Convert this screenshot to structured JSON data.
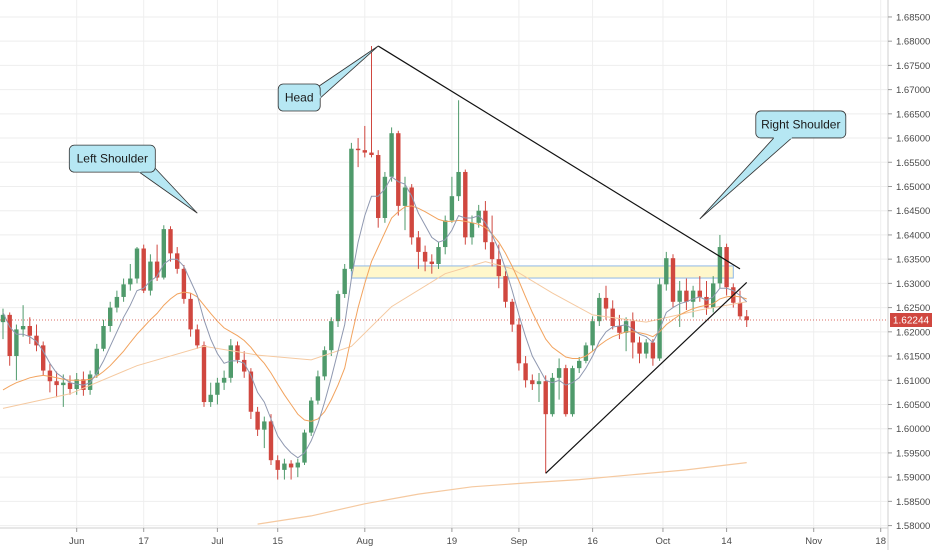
{
  "chart_data": {
    "type": "candlestick",
    "y_ticks": [
      "1.68500",
      "1.68000",
      "1.67500",
      "1.67000",
      "1.66500",
      "1.66000",
      "1.65500",
      "1.65000",
      "1.64500",
      "1.64000",
      "1.63500",
      "1.63000",
      "1.62500",
      "1.62000",
      "1.61500",
      "1.61000",
      "1.60500",
      "1.60000",
      "1.59500",
      "1.59000",
      "1.58500",
      "1.58000"
    ],
    "ylim": [
      1.5795,
      1.6885
    ],
    "x_ticks": [
      "Jun",
      "17",
      "Jul",
      "15",
      "Aug",
      "19",
      "Sep",
      "16",
      "Oct",
      "14",
      "Nov",
      "18"
    ],
    "current_price": "1.62244",
    "current_price_value": 1.62244,
    "colors": {
      "up": "#4f9a6b",
      "down": "#d0473f",
      "ma_fast": "#8f98b0",
      "ma_slow": "#f2a35e",
      "ma_long": "#f5c9a0",
      "grid": "#eeeeee",
      "callout_fill": "#b6e7f3",
      "zone_blue": "#8fb8e6",
      "zone_yellow": "#fff6c2"
    },
    "annotations": [
      {
        "label": "Left Shoulder",
        "anchor_date_index": 29,
        "anchor_price": 1.6445
      },
      {
        "label": "Head",
        "anchor_date_index": 56,
        "anchor_price": 1.679
      },
      {
        "label": "Right Shoulder",
        "anchor_date_index": 104,
        "anchor_price": 1.6433
      }
    ],
    "trendlines": [
      {
        "from": [
          56,
          1.679
        ],
        "to": [
          110,
          1.633
        ]
      },
      {
        "from": [
          81,
          1.5908
        ],
        "to": [
          111,
          1.6302
        ]
      }
    ],
    "zone": {
      "from_index": 52,
      "to_index": 109,
      "top": 1.6336,
      "bottom": 1.6311
    },
    "candles": [
      [
        1.622,
        1.6248,
        1.6185,
        1.6235
      ],
      [
        1.6235,
        1.624,
        1.613,
        1.615
      ],
      [
        1.615,
        1.6215,
        1.61,
        1.6205
      ],
      [
        1.6205,
        1.6255,
        1.619,
        1.6212
      ],
      [
        1.6212,
        1.623,
        1.6175,
        1.6192
      ],
      [
        1.6192,
        1.6215,
        1.616,
        1.6172
      ],
      [
        1.6172,
        1.618,
        1.611,
        1.612
      ],
      [
        1.612,
        1.6135,
        1.6075,
        1.6098
      ],
      [
        1.6098,
        1.6118,
        1.6065,
        1.609
      ],
      [
        1.609,
        1.6112,
        1.6045,
        1.6095
      ],
      [
        1.6095,
        1.611,
        1.607,
        1.6082
      ],
      [
        1.6082,
        1.6115,
        1.607,
        1.6102
      ],
      [
        1.6102,
        1.6118,
        1.6068,
        1.608
      ],
      [
        1.608,
        1.612,
        1.607,
        1.6112
      ],
      [
        1.6112,
        1.6175,
        1.6105,
        1.6165
      ],
      [
        1.6165,
        1.6225,
        1.616,
        1.6212
      ],
      [
        1.6212,
        1.6262,
        1.62,
        1.625
      ],
      [
        1.625,
        1.6285,
        1.624,
        1.6272
      ],
      [
        1.6272,
        1.631,
        1.6262,
        1.6298
      ],
      [
        1.6298,
        1.634,
        1.6285,
        1.631
      ],
      [
        1.631,
        1.6375,
        1.63,
        1.6372
      ],
      [
        1.6372,
        1.638,
        1.628,
        1.6285
      ],
      [
        1.6285,
        1.636,
        1.6275,
        1.6345
      ],
      [
        1.6345,
        1.638,
        1.6305,
        1.6312
      ],
      [
        1.6312,
        1.642,
        1.6308,
        1.6412
      ],
      [
        1.6412,
        1.6418,
        1.6345,
        1.6362
      ],
      [
        1.6362,
        1.6375,
        1.632,
        1.633
      ],
      [
        1.633,
        1.6338,
        1.6258,
        1.6268
      ],
      [
        1.6268,
        1.628,
        1.619,
        1.6205
      ],
      [
        1.6205,
        1.6215,
        1.6165,
        1.6172
      ],
      [
        1.6172,
        1.618,
        1.6045,
        1.6055
      ],
      [
        1.6055,
        1.6095,
        1.6045,
        1.607
      ],
      [
        1.607,
        1.6105,
        1.605,
        1.6095
      ],
      [
        1.6095,
        1.612,
        1.608,
        1.6105
      ],
      [
        1.6105,
        1.6185,
        1.6095,
        1.6172
      ],
      [
        1.6172,
        1.618,
        1.6135,
        1.6142
      ],
      [
        1.6142,
        1.616,
        1.6105,
        1.6118
      ],
      [
        1.6118,
        1.6125,
        1.602,
        1.6035
      ],
      [
        1.6035,
        1.6045,
        1.5985,
        1.5998
      ],
      [
        1.5998,
        1.6025,
        1.596,
        1.6015
      ],
      [
        1.6015,
        1.603,
        1.5925,
        1.5935
      ],
      [
        1.5935,
        1.5945,
        1.5895,
        1.5915
      ],
      [
        1.5915,
        1.5938,
        1.5895,
        1.5928
      ],
      [
        1.5928,
        1.5935,
        1.5895,
        1.592
      ],
      [
        1.592,
        1.5938,
        1.59,
        1.593
      ],
      [
        1.593,
        1.5998,
        1.5925,
        1.5992
      ],
      [
        1.5992,
        1.6065,
        1.5985,
        1.6058
      ],
      [
        1.6058,
        1.612,
        1.605,
        1.6108
      ],
      [
        1.6108,
        1.617,
        1.61,
        1.6162
      ],
      [
        1.6162,
        1.623,
        1.615,
        1.6222
      ],
      [
        1.6222,
        1.6285,
        1.621,
        1.6278
      ],
      [
        1.6278,
        1.634,
        1.627,
        1.633
      ],
      [
        1.633,
        1.659,
        1.6325,
        1.6578
      ],
      [
        1.6578,
        1.66,
        1.654,
        1.6575
      ],
      [
        1.6575,
        1.6625,
        1.656,
        1.657
      ],
      [
        1.657,
        1.679,
        1.656,
        1.6565
      ],
      [
        1.6565,
        1.6575,
        1.6415,
        1.6435
      ],
      [
        1.6435,
        1.653,
        1.6425,
        1.652
      ],
      [
        1.652,
        1.6622,
        1.651,
        1.661
      ],
      [
        1.661,
        1.6615,
        1.644,
        1.646
      ],
      [
        1.646,
        1.652,
        1.641,
        1.6498
      ],
      [
        1.6498,
        1.6505,
        1.638,
        1.6395
      ],
      [
        1.6395,
        1.6408,
        1.633,
        1.6365
      ],
      [
        1.6365,
        1.6378,
        1.6325,
        1.6345
      ],
      [
        1.6345,
        1.636,
        1.632,
        1.634
      ],
      [
        1.634,
        1.6385,
        1.633,
        1.6375
      ],
      [
        1.6375,
        1.644,
        1.636,
        1.643
      ],
      [
        1.643,
        1.652,
        1.6425,
        1.648
      ],
      [
        1.648,
        1.6678,
        1.647,
        1.653
      ],
      [
        1.653,
        1.6535,
        1.638,
        1.6395
      ],
      [
        1.6395,
        1.644,
        1.638,
        1.6425
      ],
      [
        1.6425,
        1.6462,
        1.6415,
        1.645
      ],
      [
        1.645,
        1.647,
        1.637,
        1.6385
      ],
      [
        1.6385,
        1.644,
        1.6335,
        1.635
      ],
      [
        1.635,
        1.638,
        1.629,
        1.6315
      ],
      [
        1.6315,
        1.6325,
        1.625,
        1.6262
      ],
      [
        1.6262,
        1.6268,
        1.62,
        1.6215
      ],
      [
        1.6215,
        1.6228,
        1.612,
        1.6135
      ],
      [
        1.6135,
        1.615,
        1.6085,
        1.61
      ],
      [
        1.61,
        1.6112,
        1.608,
        1.6092
      ],
      [
        1.6092,
        1.6115,
        1.6055,
        1.6098
      ],
      [
        1.6098,
        1.611,
        1.5908,
        1.603
      ],
      [
        1.603,
        1.6115,
        1.6025,
        1.6105
      ],
      [
        1.6105,
        1.6145,
        1.606,
        1.6125
      ],
      [
        1.6125,
        1.6132,
        1.6025,
        1.603
      ],
      [
        1.603,
        1.613,
        1.6025,
        1.6125
      ],
      [
        1.6125,
        1.6148,
        1.6115,
        1.614
      ],
      [
        1.614,
        1.6178,
        1.6135,
        1.6172
      ],
      [
        1.6172,
        1.6232,
        1.616,
        1.6222
      ],
      [
        1.6222,
        1.628,
        1.6212,
        1.627
      ],
      [
        1.627,
        1.6295,
        1.6225,
        1.6248
      ],
      [
        1.6248,
        1.6265,
        1.6205,
        1.6212
      ],
      [
        1.6212,
        1.6235,
        1.6185,
        1.6198
      ],
      [
        1.6198,
        1.623,
        1.616,
        1.6222
      ],
      [
        1.6222,
        1.624,
        1.6145,
        1.6178
      ],
      [
        1.6178,
        1.619,
        1.6135,
        1.6155
      ],
      [
        1.6155,
        1.6185,
        1.6145,
        1.6178
      ],
      [
        1.6178,
        1.6185,
        1.613,
        1.6145
      ],
      [
        1.6145,
        1.631,
        1.614,
        1.6298
      ],
      [
        1.6298,
        1.6365,
        1.6285,
        1.6352
      ],
      [
        1.6352,
        1.636,
        1.625,
        1.6262
      ],
      [
        1.6262,
        1.6305,
        1.621,
        1.6285
      ],
      [
        1.6285,
        1.631,
        1.6245,
        1.6262
      ],
      [
        1.6262,
        1.6295,
        1.623,
        1.6285
      ],
      [
        1.6285,
        1.6315,
        1.6262,
        1.6272
      ],
      [
        1.6272,
        1.6305,
        1.6235,
        1.625
      ],
      [
        1.625,
        1.6315,
        1.624,
        1.63
      ],
      [
        1.63,
        1.64,
        1.629,
        1.6375
      ],
      [
        1.6375,
        1.6382,
        1.6275,
        1.6292
      ],
      [
        1.6292,
        1.63,
        1.625,
        1.626
      ],
      [
        1.626,
        1.6285,
        1.6225,
        1.6232
      ],
      [
        1.6232,
        1.6245,
        1.621,
        1.6224
      ]
    ],
    "ma_fast": [
      1.624,
      1.621,
      1.6195,
      1.6195,
      1.619,
      1.618,
      1.616,
      1.6135,
      1.6115,
      1.6105,
      1.6095,
      1.6092,
      1.609,
      1.6095,
      1.6115,
      1.614,
      1.617,
      1.62,
      1.623,
      1.6255,
      1.6285,
      1.629,
      1.6305,
      1.6315,
      1.634,
      1.635,
      1.635,
      1.6335,
      1.6305,
      1.6275,
      1.6225,
      1.6185,
      1.6155,
      1.6135,
      1.614,
      1.614,
      1.6135,
      1.611,
      1.6075,
      1.6055,
      1.602,
      1.5985,
      1.5965,
      1.595,
      1.594,
      1.595,
      1.5975,
      1.601,
      1.6055,
      1.6105,
      1.616,
      1.6215,
      1.631,
      1.6385,
      1.644,
      1.648,
      1.648,
      1.6495,
      1.652,
      1.651,
      1.6505,
      1.648,
      1.6445,
      1.642,
      1.6395,
      1.6385,
      1.639,
      1.641,
      1.644,
      1.6435,
      1.6435,
      1.644,
      1.6425,
      1.64,
      1.637,
      1.633,
      1.6285,
      1.6235,
      1.619,
      1.615,
      1.6125,
      1.61,
      1.6095,
      1.61,
      1.609,
      1.6095,
      1.6105,
      1.6125,
      1.615,
      1.618,
      1.62,
      1.621,
      1.6212,
      1.6215,
      1.6205,
      1.6195,
      1.619,
      1.6178,
      1.6205,
      1.624,
      1.625,
      1.6258,
      1.6262,
      1.6268,
      1.6272,
      1.6265,
      1.6272,
      1.629,
      1.629,
      1.6285,
      1.6275,
      1.6262
    ],
    "ma_slow": [
      1.608,
      1.6088,
      1.6095,
      1.61,
      1.6105,
      1.6108,
      1.611,
      1.6108,
      1.6105,
      1.6102,
      1.61,
      1.61,
      1.61,
      1.6102,
      1.6108,
      1.6118,
      1.613,
      1.6145,
      1.616,
      1.6178,
      1.6195,
      1.621,
      1.6225,
      1.6238,
      1.6255,
      1.6268,
      1.6278,
      1.6282,
      1.628,
      1.6272,
      1.6255,
      1.6238,
      1.6222,
      1.6208,
      1.62,
      1.6192,
      1.6182,
      1.6168,
      1.615,
      1.6135,
      1.6115,
      1.6092,
      1.607,
      1.605,
      1.603,
      1.6018,
      1.6015,
      1.602,
      1.6035,
      1.606,
      1.609,
      1.6125,
      1.619,
      1.625,
      1.63,
      1.6345,
      1.6375,
      1.6405,
      1.6435,
      1.6448,
      1.6458,
      1.646,
      1.6455,
      1.6448,
      1.644,
      1.6432,
      1.6428,
      1.6428,
      1.643,
      1.6428,
      1.6425,
      1.6422,
      1.6415,
      1.6402,
      1.6385,
      1.6362,
      1.6335,
      1.6305,
      1.6272,
      1.624,
      1.6212,
      1.6185,
      1.6168,
      1.6158,
      1.6148,
      1.6145,
      1.6145,
      1.615,
      1.616,
      1.6172,
      1.6182,
      1.619,
      1.6195,
      1.62,
      1.62,
      1.6198,
      1.6195,
      1.619,
      1.62,
      1.6215,
      1.6225,
      1.6235,
      1.6242,
      1.6248,
      1.6252,
      1.6255,
      1.6258,
      1.6268,
      1.6272,
      1.6274,
      1.6272,
      1.6268
    ],
    "ma_long": [
      [
        0,
        1.6042
      ],
      [
        10,
        1.6072
      ],
      [
        20,
        1.613
      ],
      [
        30,
        1.617
      ],
      [
        38,
        1.6152
      ],
      [
        46,
        1.6142
      ],
      [
        52,
        1.617
      ],
      [
        58,
        1.6252
      ],
      [
        66,
        1.632
      ],
      [
        72,
        1.6345
      ],
      [
        76,
        1.633
      ],
      [
        82,
        1.628
      ],
      [
        88,
        1.6235
      ],
      [
        96,
        1.622
      ],
      [
        104,
        1.6245
      ],
      [
        111,
        1.6262
      ]
    ],
    "ma_200": [
      [
        38,
        1.5803
      ],
      [
        46,
        1.582
      ],
      [
        54,
        1.5845
      ],
      [
        62,
        1.5865
      ],
      [
        70,
        1.588
      ],
      [
        78,
        1.5888
      ],
      [
        86,
        1.5895
      ],
      [
        94,
        1.5905
      ],
      [
        102,
        1.5915
      ],
      [
        108,
        1.5925
      ],
      [
        111,
        1.593
      ]
    ]
  }
}
